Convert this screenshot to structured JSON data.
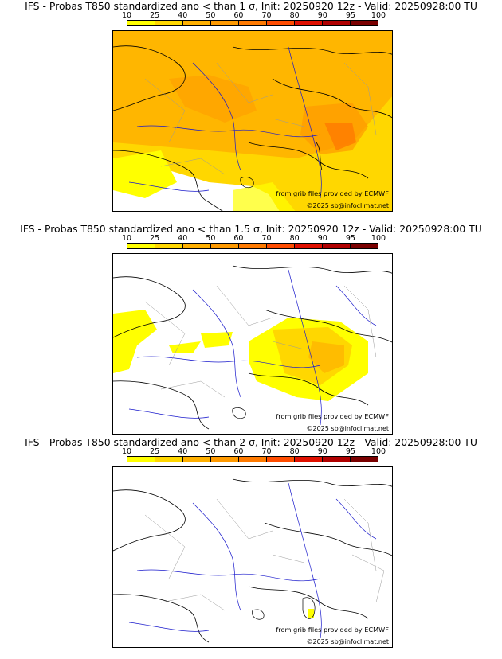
{
  "scale": {
    "labels": [
      "10",
      "25",
      "40",
      "50",
      "60",
      "70",
      "80",
      "90",
      "95",
      "100"
    ],
    "colors": [
      "#ffff00",
      "#ffd700",
      "#ffb000",
      "#ff9a00",
      "#ff7a00",
      "#ff4c00",
      "#e01000",
      "#b00000",
      "#7a0000"
    ]
  },
  "panels": [
    {
      "title": "IFS - Probas T850  standardized ano < than 1 σ, Init: 20250920 12z - Valid: 20250928:00 TU"
    },
    {
      "title": "IFS - Probas T850  standardized ano < than 1.5 σ, Init: 20250920 12z - Valid: 20250928:00 TU"
    },
    {
      "title": "IFS - Probas T850  standardized ano < than 2 σ, Init: 20250920 12z - Valid: 20250928:00 TU"
    }
  ],
  "credit": "from grib files provided by ECMWF",
  "copyright": "©2025 sb@infoclimat.net",
  "colors": {
    "land_border": "#000000",
    "river": "#1a1acc",
    "admin": "#9a9a9a"
  }
}
